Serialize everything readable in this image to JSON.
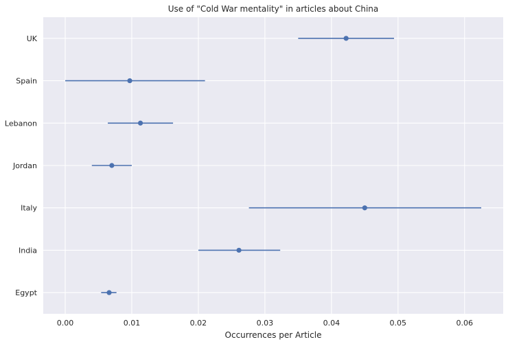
{
  "chart_data": {
    "type": "scatter",
    "title": "Use of \"Cold War mentality\" in articles about China",
    "xlabel": "Occurrences per Article",
    "ylabel": "",
    "xlim": [
      -0.0033,
      0.0658
    ],
    "x_ticks": [
      "0.00",
      "0.01",
      "0.02",
      "0.03",
      "0.04",
      "0.05",
      "0.06"
    ],
    "x_tick_values": [
      0.0,
      0.01,
      0.02,
      0.03,
      0.04,
      0.05,
      0.06
    ],
    "grid": true,
    "categories": [
      "UK",
      "Spain",
      "Lebanon",
      "Jordan",
      "Italy",
      "India",
      "Egypt"
    ],
    "series": [
      {
        "values": [
          0.0422,
          0.0097,
          0.0113,
          0.007,
          0.045,
          0.0261,
          0.0066
        ],
        "err_low": [
          0.035,
          0.0,
          0.0064,
          0.004,
          0.0276,
          0.02,
          0.0054
        ],
        "err_high": [
          0.0494,
          0.021,
          0.0162,
          0.01,
          0.0625,
          0.0323,
          0.0077
        ]
      }
    ],
    "colors": {
      "background": "#eaeaf2",
      "grid": "#ffffff",
      "marker": "#4c72b0",
      "errorbar": "#4c72b0"
    }
  }
}
